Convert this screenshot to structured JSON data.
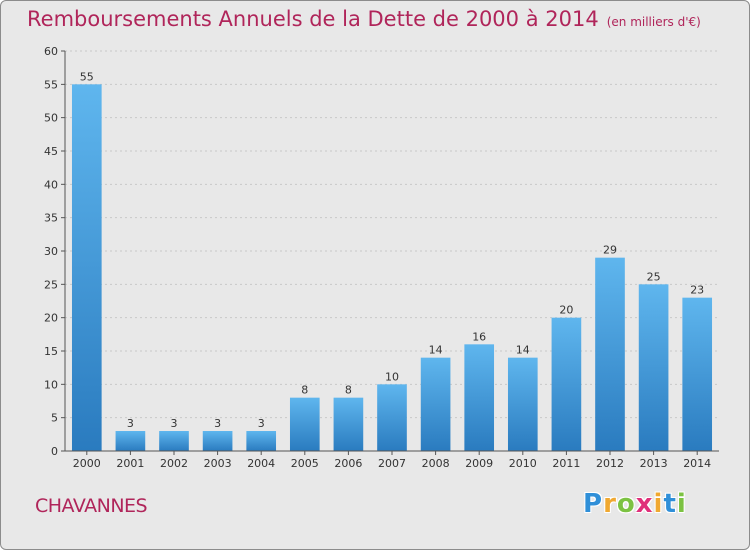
{
  "title": "Remboursements Annuels de la Dette de 2000 à 2014",
  "unit": "(en milliers d'€)",
  "town": "CHAVANNES",
  "brand": {
    "letters": [
      "P",
      "r",
      "o",
      "x",
      "i",
      "t",
      "i"
    ],
    "colors": [
      "#2f8fd8",
      "#f0a830",
      "#7cc242",
      "#e0307a",
      "#f0a830",
      "#2f8fd8",
      "#7cc242"
    ]
  },
  "colors": {
    "title": "#b0255a",
    "bar_light": "#5fb6ee",
    "bar_dark": "#2a7bbf",
    "axis": "#555555",
    "grid": "#c8c8c8"
  },
  "chart_data": {
    "type": "bar",
    "title": "Remboursements Annuels de la Dette de 2000 à 2014",
    "categories": [
      "2000",
      "2001",
      "2002",
      "2003",
      "2004",
      "2005",
      "2006",
      "2007",
      "2008",
      "2009",
      "2010",
      "2011",
      "2012",
      "2013",
      "2014"
    ],
    "values": [
      55,
      3,
      3,
      3,
      3,
      8,
      8,
      10,
      14,
      16,
      14,
      20,
      29,
      25,
      23
    ],
    "ylim": [
      0,
      60
    ],
    "yticks": [
      0,
      5,
      10,
      15,
      20,
      25,
      30,
      35,
      40,
      45,
      50,
      55,
      60
    ],
    "grid": true,
    "legend": "none",
    "data_labels": true
  }
}
